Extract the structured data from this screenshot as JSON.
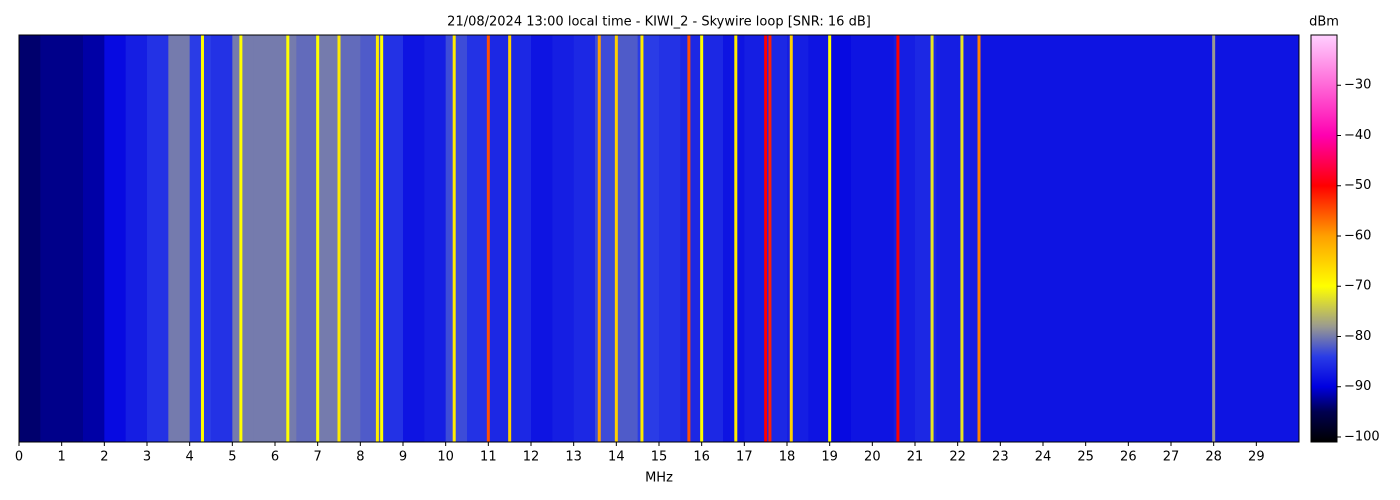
{
  "chart_data": {
    "type": "heatmap",
    "title": "21/08/2024 13:00 local time - KIWI_2 - Skywire loop [SNR: 16 dB]",
    "x_label": "MHz",
    "colorbar_label": "dBm",
    "xlim": [
      0,
      30
    ],
    "xticks": [
      0,
      1,
      2,
      3,
      4,
      5,
      6,
      7,
      8,
      9,
      10,
      11,
      12,
      13,
      14,
      15,
      16,
      17,
      18,
      19,
      20,
      21,
      22,
      23,
      24,
      25,
      26,
      27,
      28,
      29
    ],
    "clim": [
      -101,
      -20
    ],
    "cticks": [
      {
        "value": -30,
        "label": "−30"
      },
      {
        "value": -40,
        "label": "−40"
      },
      {
        "value": -50,
        "label": "−50"
      },
      {
        "value": -60,
        "label": "−60"
      },
      {
        "value": -70,
        "label": "−70"
      },
      {
        "value": -80,
        "label": "−80"
      },
      {
        "value": -90,
        "label": "−90"
      },
      {
        "value": -100,
        "label": "−100"
      }
    ],
    "colors": [
      {
        "value": -101,
        "color": "#000000"
      },
      {
        "value": -95,
        "color": "#000050"
      },
      {
        "value": -90,
        "color": "#0000e0"
      },
      {
        "value": -84,
        "color": "#2a3ce6"
      },
      {
        "value": -78,
        "color": "#9a9a90"
      },
      {
        "value": -70,
        "color": "#ffff00"
      },
      {
        "value": -60,
        "color": "#ffa000"
      },
      {
        "value": -50,
        "color": "#ff0000"
      },
      {
        "value": -40,
        "color": "#ff00b0"
      },
      {
        "value": -20,
        "color": "#ffd0ff"
      }
    ],
    "x": [
      0,
      0.5,
      1,
      1.5,
      2,
      2.5,
      3,
      3.5,
      4,
      4.5,
      5,
      5.5,
      6,
      6.5,
      7,
      7.5,
      8,
      8.5,
      9,
      9.5,
      10,
      10.5,
      11,
      11.5,
      12,
      12.5,
      13,
      13.5,
      14,
      14.5,
      15,
      15.5,
      16,
      16.5,
      17,
      17.5,
      18,
      18.5,
      19,
      19.5,
      20,
      20.5,
      21,
      21.5,
      22,
      22.5,
      23,
      23.5,
      24,
      24.5,
      25,
      25.5,
      26,
      26.5,
      27,
      27.5,
      28,
      28.5,
      29,
      29.5
    ],
    "values": [
      -94,
      -93,
      -93,
      -92,
      -89,
      -87,
      -85,
      -80,
      -84,
      -85,
      -80,
      -80,
      -80,
      -81,
      -80,
      -81,
      -82,
      -85,
      -88,
      -87,
      -83,
      -85,
      -86,
      -86,
      -88,
      -87,
      -86,
      -83,
      -82,
      -84,
      -85,
      -86,
      -86,
      -88,
      -87,
      -86,
      -87,
      -88,
      -89,
      -88,
      -88,
      -87,
      -86,
      -87,
      -87,
      -88,
      -88,
      -88,
      -88,
      -88,
      -88,
      -88,
      -88,
      -88,
      -88,
      -88,
      -88,
      -88,
      -88,
      -88
    ],
    "signals": [
      {
        "x": 4.3,
        "value": -70
      },
      {
        "x": 5.2,
        "value": -70
      },
      {
        "x": 6.3,
        "value": -70
      },
      {
        "x": 7.0,
        "value": -70
      },
      {
        "x": 7.5,
        "value": -68
      },
      {
        "x": 8.4,
        "value": -68
      },
      {
        "x": 8.5,
        "value": -70
      },
      {
        "x": 10.2,
        "value": -68
      },
      {
        "x": 11.0,
        "value": -55
      },
      {
        "x": 11.5,
        "value": -65
      },
      {
        "x": 13.6,
        "value": -60
      },
      {
        "x": 14.0,
        "value": -65
      },
      {
        "x": 14.6,
        "value": -68
      },
      {
        "x": 15.7,
        "value": -55
      },
      {
        "x": 16.0,
        "value": -70
      },
      {
        "x": 16.8,
        "value": -68
      },
      {
        "x": 17.5,
        "value": -50
      },
      {
        "x": 17.6,
        "value": -52
      },
      {
        "x": 18.1,
        "value": -65
      },
      {
        "x": 19.0,
        "value": -70
      },
      {
        "x": 20.6,
        "value": -50
      },
      {
        "x": 21.4,
        "value": -72
      },
      {
        "x": 22.1,
        "value": -72
      },
      {
        "x": 22.5,
        "value": -58
      },
      {
        "x": 28.0,
        "value": -78
      }
    ]
  }
}
